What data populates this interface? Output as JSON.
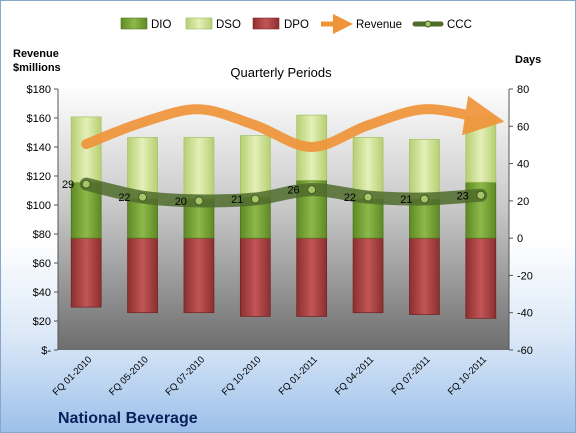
{
  "chart_data": {
    "type": "bar",
    "title": "Quarterly Periods",
    "company": "National Beverage",
    "categories": [
      "FQ 01-2010",
      "FQ 05-2010",
      "FQ 07-2010",
      "FQ 10-2010",
      "FQ 01-2011",
      "FQ 04-2011",
      "FQ 07-2011",
      "FQ 10-2011"
    ],
    "left_axis": {
      "label_line1": "Revenue",
      "label_line2": "$millions",
      "min": 0,
      "max": 180,
      "step": 20,
      "tick_labels": [
        "$-",
        "$20",
        "$40",
        "$60",
        "$80",
        "$100",
        "$120",
        "$140",
        "$160",
        "$180"
      ]
    },
    "right_axis": {
      "label": "Days",
      "min": -60,
      "max": 80,
      "step": 20,
      "tick_labels": [
        "-60",
        "-40",
        "-20",
        "0",
        "20",
        "40",
        "60",
        "80"
      ]
    },
    "series": [
      {
        "name": "DIO",
        "kind": "stacked_bar_days",
        "color": "#7aa23a",
        "values": [
          30,
          21,
          21,
          22,
          31,
          21,
          21,
          30
        ]
      },
      {
        "name": "DSO",
        "kind": "stacked_bar_days",
        "color": "#d3e79c",
        "values": [
          35,
          33,
          33,
          33,
          35,
          33,
          32,
          35
        ]
      },
      {
        "name": "DPO",
        "kind": "negative_bar_days",
        "color": "#a83c3c",
        "values": [
          -37,
          -40,
          -40,
          -42,
          -42,
          -40,
          -41,
          -43
        ]
      },
      {
        "name": "Revenue",
        "kind": "line_left_axis",
        "color": "#f0943a",
        "values": [
          142,
          157,
          166,
          155,
          140,
          155,
          166,
          160
        ]
      },
      {
        "name": "CCC",
        "kind": "line_days",
        "color": "#4f6b2c",
        "values": [
          29,
          22,
          20,
          21,
          26,
          22,
          21,
          23
        ],
        "labels": [
          "29",
          "22",
          "20",
          "21",
          "26",
          "22",
          "21",
          "23"
        ]
      }
    ],
    "legend": {
      "position": "top",
      "items": [
        "DIO",
        "DSO",
        "DPO",
        "Revenue",
        "CCC"
      ]
    },
    "grid": false
  }
}
